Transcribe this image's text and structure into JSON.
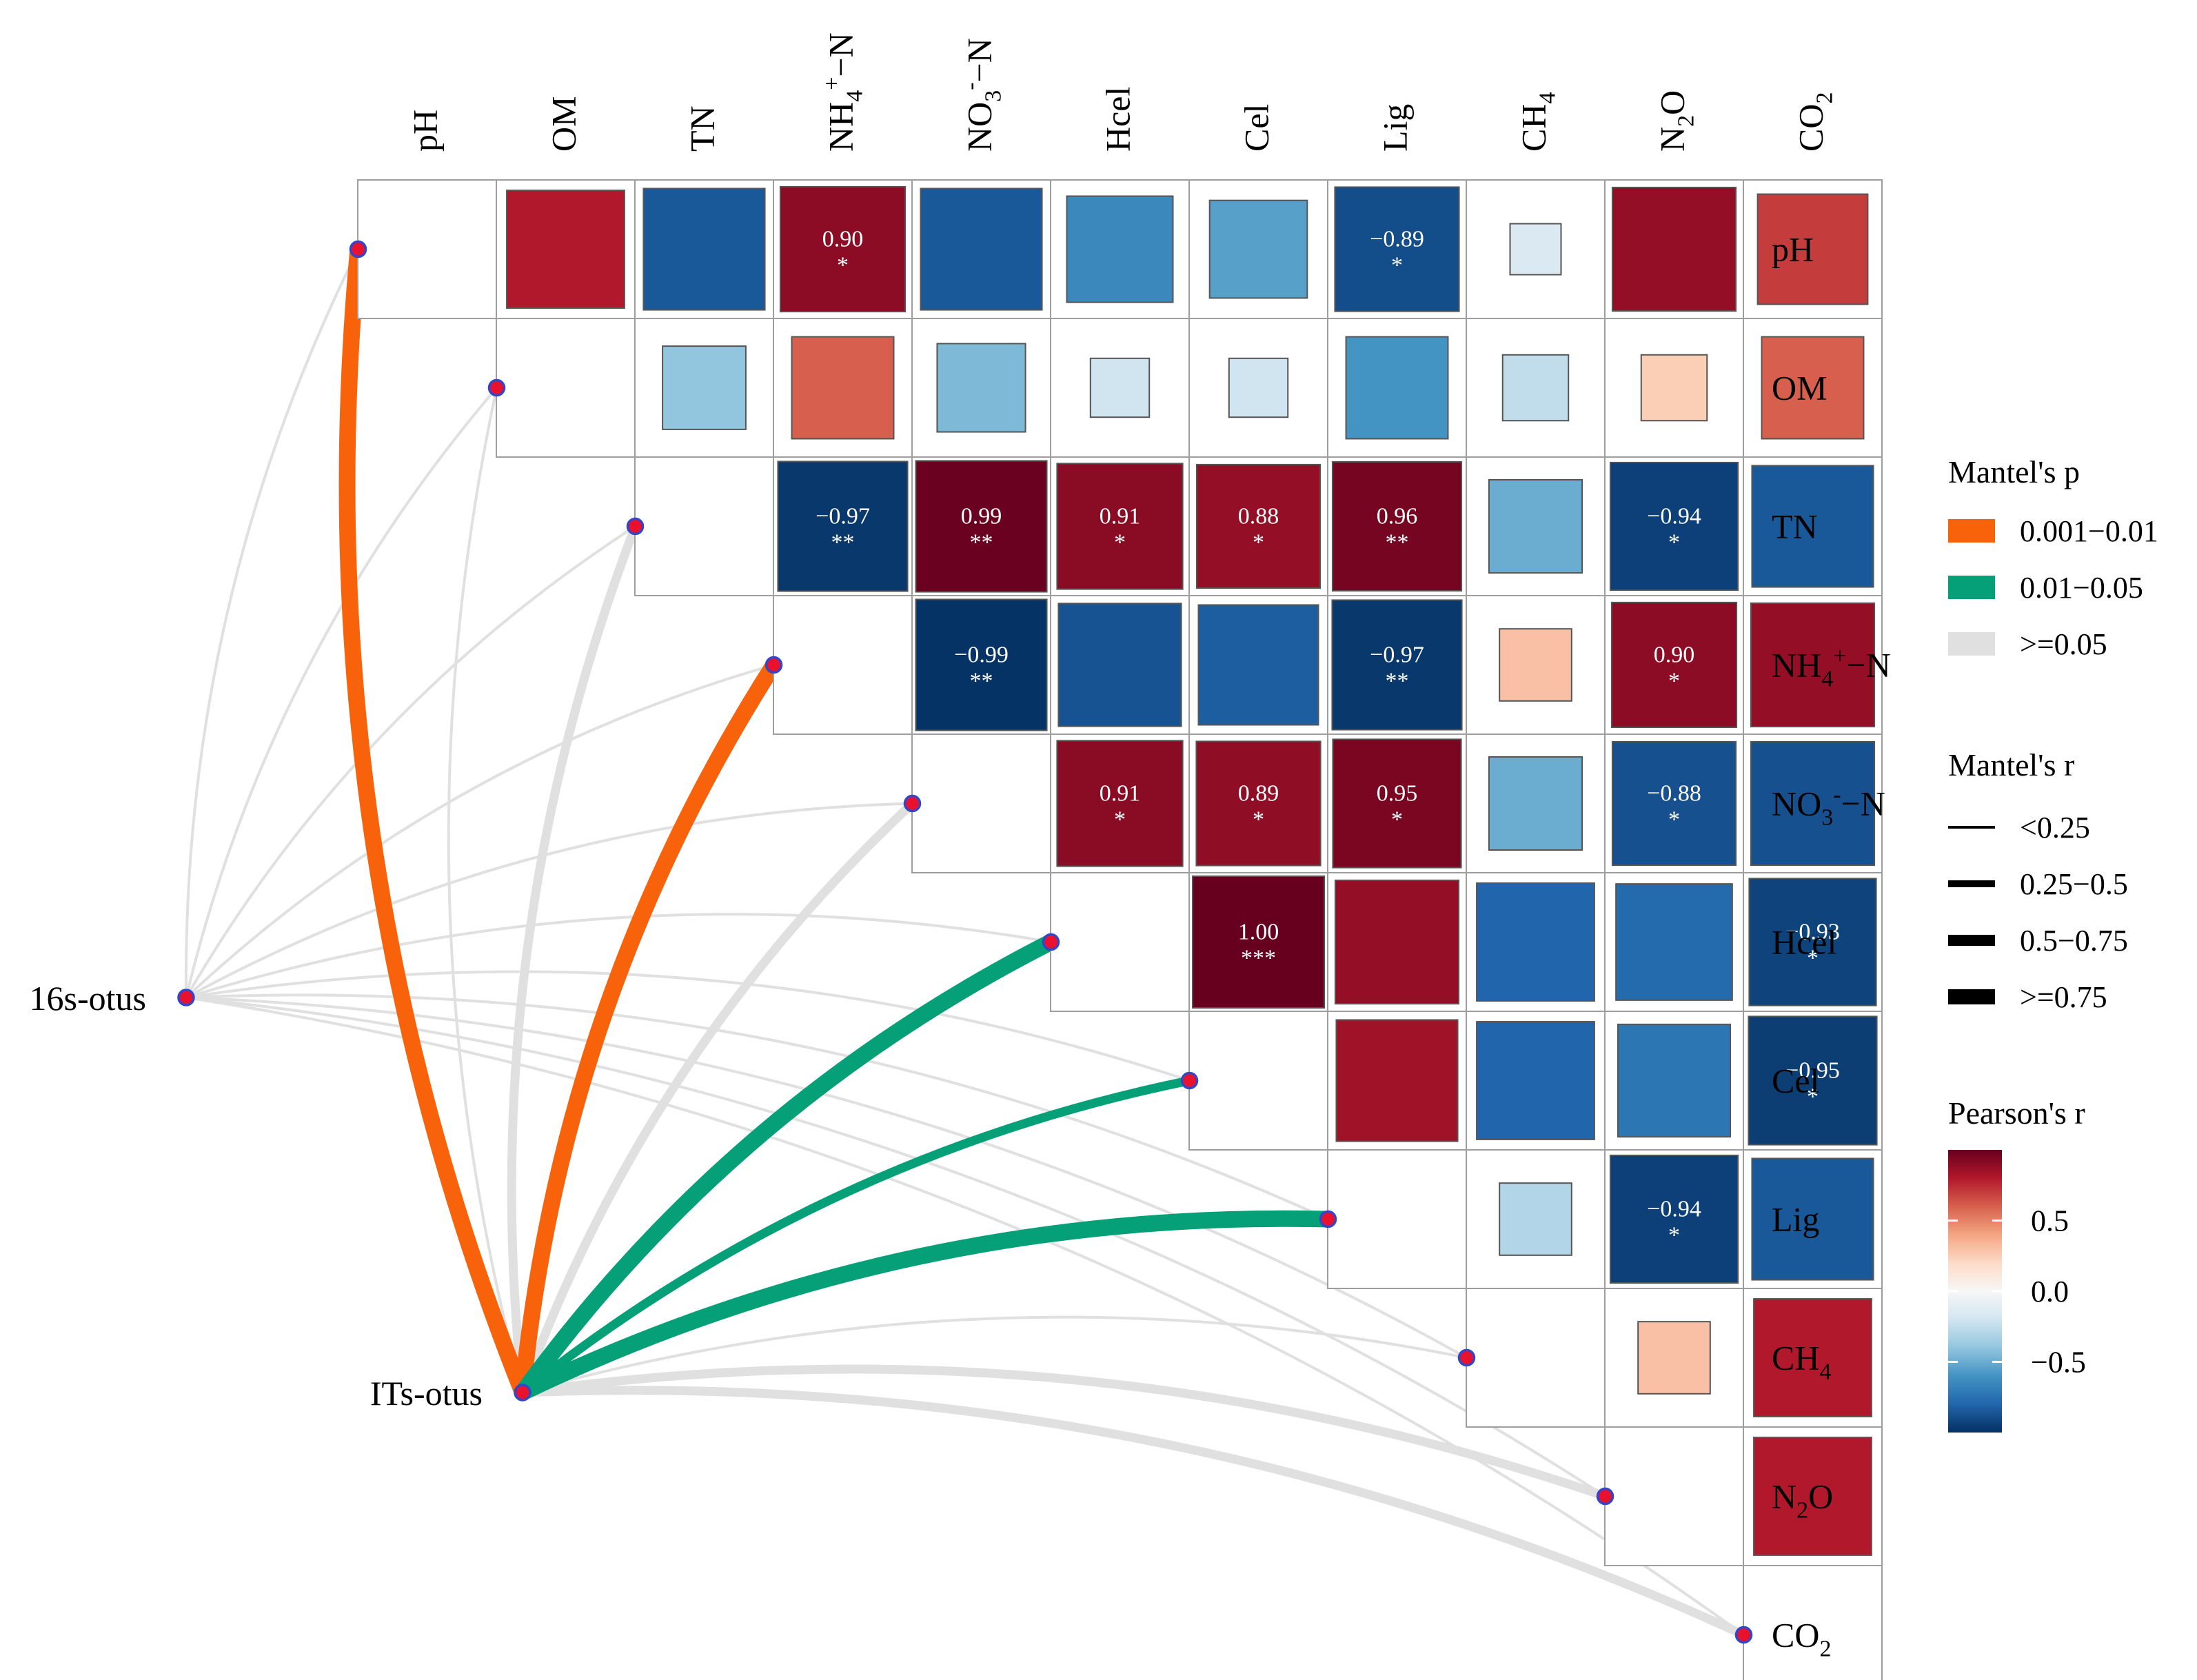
{
  "chart_data": {
    "type": "heatmap",
    "variables": [
      "pH",
      "OM",
      "TN",
      "NH4+-N",
      "NO3--N",
      "Hcel",
      "Cel",
      "Lig",
      "CH4",
      "N2O",
      "CO2"
    ],
    "matrix": [
      [
        1.0,
        0.8,
        -0.85,
        0.9,
        -0.85,
        -0.65,
        -0.55,
        -0.89,
        -0.15,
        0.88,
        0.7
      ],
      [
        0.8,
        1.0,
        -0.4,
        0.6,
        -0.45,
        -0.2,
        -0.2,
        -0.6,
        -0.25,
        0.25,
        0.6
      ],
      [
        -0.85,
        -0.4,
        1.0,
        -0.97,
        0.99,
        0.91,
        0.88,
        0.96,
        -0.5,
        -0.94,
        -0.85
      ],
      [
        0.9,
        0.6,
        -0.97,
        1.0,
        -0.99,
        -0.87,
        -0.83,
        -0.97,
        0.3,
        0.9,
        0.88
      ],
      [
        -0.85,
        -0.45,
        0.99,
        -0.99,
        1.0,
        0.91,
        0.89,
        0.95,
        -0.5,
        -0.88,
        -0.88
      ],
      [
        -0.65,
        -0.2,
        0.91,
        -0.87,
        0.91,
        1.0,
        1.0,
        0.88,
        -0.8,
        -0.78,
        -0.93
      ],
      [
        -0.55,
        -0.2,
        0.88,
        -0.83,
        0.89,
        1.0,
        1.0,
        0.85,
        -0.8,
        -0.73,
        -0.95
      ],
      [
        -0.89,
        -0.6,
        0.96,
        -0.97,
        0.95,
        0.88,
        0.85,
        1.0,
        -0.3,
        -0.94,
        -0.85
      ],
      [
        -0.15,
        -0.25,
        -0.5,
        0.3,
        -0.5,
        -0.8,
        -0.8,
        -0.3,
        1.0,
        0.3,
        0.8
      ],
      [
        0.88,
        0.25,
        -0.94,
        0.9,
        -0.88,
        -0.78,
        -0.73,
        -0.94,
        0.3,
        1.0,
        0.8
      ],
      [
        0.7,
        0.6,
        -0.85,
        0.88,
        -0.88,
        -0.93,
        -0.95,
        -0.85,
        0.8,
        0.8,
        1.0
      ]
    ],
    "labels": [
      {
        "row": "pH",
        "col": "NH4+-N",
        "r": "0.90",
        "sig": "*"
      },
      {
        "row": "pH",
        "col": "Lig",
        "r": "−0.89",
        "sig": "*"
      },
      {
        "row": "TN",
        "col": "NH4+-N",
        "r": "−0.97",
        "sig": "**"
      },
      {
        "row": "TN",
        "col": "NO3--N",
        "r": "0.99",
        "sig": "**"
      },
      {
        "row": "TN",
        "col": "Hcel",
        "r": "0.91",
        "sig": "*"
      },
      {
        "row": "TN",
        "col": "Cel",
        "r": "0.88",
        "sig": "*"
      },
      {
        "row": "TN",
        "col": "Lig",
        "r": "0.96",
        "sig": "**"
      },
      {
        "row": "TN",
        "col": "N2O",
        "r": "−0.94",
        "sig": "*"
      },
      {
        "row": "NH4+-N",
        "col": "NO3--N",
        "r": "−0.99",
        "sig": "**"
      },
      {
        "row": "NH4+-N",
        "col": "Lig",
        "r": "−0.97",
        "sig": "**"
      },
      {
        "row": "NH4+-N",
        "col": "N2O",
        "r": "0.90",
        "sig": "*"
      },
      {
        "row": "NO3--N",
        "col": "Hcel",
        "r": "0.91",
        "sig": "*"
      },
      {
        "row": "NO3--N",
        "col": "Cel",
        "r": "0.89",
        "sig": "*"
      },
      {
        "row": "NO3--N",
        "col": "Lig",
        "r": "0.95",
        "sig": "*"
      },
      {
        "row": "NO3--N",
        "col": "N2O",
        "r": "−0.88",
        "sig": "*"
      },
      {
        "row": "Hcel",
        "col": "Cel",
        "r": "1.00",
        "sig": "***"
      },
      {
        "row": "Hcel",
        "col": "CO2",
        "r": "−0.93",
        "sig": "*"
      },
      {
        "row": "Cel",
        "col": "CO2",
        "r": "−0.95",
        "sig": "*"
      },
      {
        "row": "Lig",
        "col": "N2O",
        "r": "−0.94",
        "sig": "*"
      }
    ],
    "mantel": {
      "sources": [
        "16s-otus",
        "ITs-otus"
      ],
      "links": [
        {
          "source": "16s-otus",
          "target": "pH",
          "p": ">=0.05",
          "r": "<0.25"
        },
        {
          "source": "16s-otus",
          "target": "OM",
          "p": ">=0.05",
          "r": "<0.25"
        },
        {
          "source": "16s-otus",
          "target": "TN",
          "p": ">=0.05",
          "r": "<0.25"
        },
        {
          "source": "16s-otus",
          "target": "NH4+-N",
          "p": ">=0.05",
          "r": "<0.25"
        },
        {
          "source": "16s-otus",
          "target": "NO3--N",
          "p": ">=0.05",
          "r": "<0.25"
        },
        {
          "source": "16s-otus",
          "target": "Hcel",
          "p": ">=0.05",
          "r": "<0.25"
        },
        {
          "source": "16s-otus",
          "target": "Cel",
          "p": ">=0.05",
          "r": "<0.25"
        },
        {
          "source": "16s-otus",
          "target": "Lig",
          "p": ">=0.05",
          "r": "<0.25"
        },
        {
          "source": "16s-otus",
          "target": "CH4",
          "p": ">=0.05",
          "r": "<0.25"
        },
        {
          "source": "16s-otus",
          "target": "N2O",
          "p": ">=0.05",
          "r": "<0.25"
        },
        {
          "source": "16s-otus",
          "target": "CO2",
          "p": ">=0.05",
          "r": "<0.25"
        },
        {
          "source": "ITs-otus",
          "target": "pH",
          "p": "0.001−0.01",
          "r": "0.5−0.75"
        },
        {
          "source": "ITs-otus",
          "target": "OM",
          "p": ">=0.05",
          "r": "<0.25"
        },
        {
          "source": "ITs-otus",
          "target": "TN",
          "p": ">=0.05",
          "r": "0.25−0.5"
        },
        {
          "source": "ITs-otus",
          "target": "NH4+-N",
          "p": "0.001−0.01",
          "r": "0.5−0.75"
        },
        {
          "source": "ITs-otus",
          "target": "NO3--N",
          "p": ">=0.05",
          "r": "0.25−0.5"
        },
        {
          "source": "ITs-otus",
          "target": "Hcel",
          "p": "0.01−0.05",
          "r": "0.5−0.75"
        },
        {
          "source": "ITs-otus",
          "target": "Cel",
          "p": "0.01−0.05",
          "r": "0.25−0.5"
        },
        {
          "source": "ITs-otus",
          "target": "Lig",
          "p": "0.01−0.05",
          "r": "0.5−0.75"
        },
        {
          "source": "ITs-otus",
          "target": "CH4",
          "p": ">=0.05",
          "r": "<0.25"
        },
        {
          "source": "ITs-otus",
          "target": "N2O",
          "p": ">=0.05",
          "r": "0.25−0.5"
        },
        {
          "source": "ITs-otus",
          "target": "CO2",
          "p": ">=0.05",
          "r": "0.25−0.5"
        }
      ]
    },
    "legend": {
      "mantel_p_title": "Mantel's p",
      "mantel_p": [
        {
          "label": "0.001−0.01",
          "color": "#F8620B"
        },
        {
          "label": "0.01−0.05",
          "color": "#059F78"
        },
        {
          "label": ">=0.05",
          "color": "#E0E0E0"
        }
      ],
      "mantel_r_title": "Mantel's r",
      "mantel_r": [
        "<0.25",
        "0.25−0.5",
        "0.5−0.75",
        ">=0.75"
      ],
      "pearson_title": "Pearson's r",
      "pearson_ticks": [
        {
          "label": "0.5",
          "value": 0.5
        },
        {
          "label": "0.0",
          "value": 0.0
        },
        {
          "label": "−0.5",
          "value": -0.5
        }
      ],
      "pearson_range": [
        -1,
        1
      ],
      "legend_position": "right"
    },
    "colors": {
      "grid_border": "#9E9E9E",
      "square_border": "#555555",
      "node_fill": "#E8112E",
      "node_stroke": "#3346C7",
      "gradient": [
        "#053061",
        "#2166AC",
        "#4393C3",
        "#92C5DE",
        "#D1E5F0",
        "#F7F7F7",
        "#FDDBC7",
        "#F4A582",
        "#D6604D",
        "#B2182B",
        "#67001F"
      ]
    }
  }
}
